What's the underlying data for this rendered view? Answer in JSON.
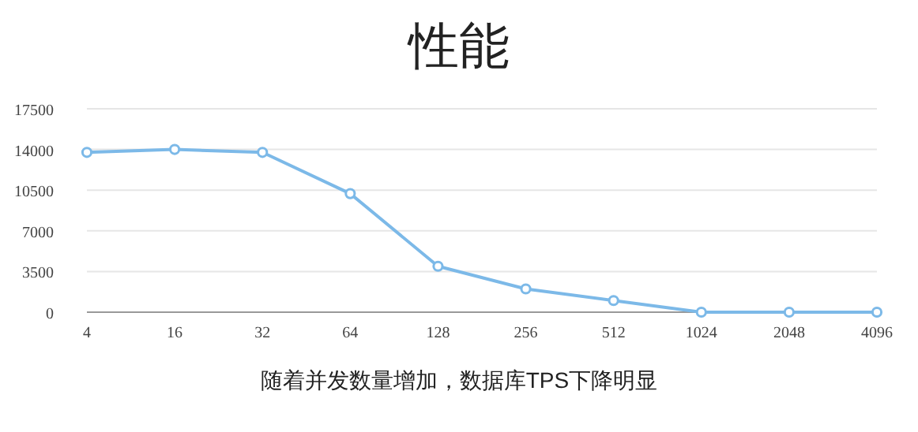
{
  "chart_data": {
    "type": "line",
    "title": "性能",
    "categories": [
      "4",
      "16",
      "32",
      "64",
      "128",
      "256",
      "512",
      "1024",
      "2048",
      "4096"
    ],
    "series": [
      {
        "color": "#7cb9e8",
        "values": [
          13750,
          14000,
          13750,
          10200,
          3950,
          2000,
          1000,
          0,
          0,
          0
        ]
      }
    ],
    "ylim": [
      0,
      17500
    ],
    "yticks": [
      0,
      3500,
      7000,
      10500,
      14000,
      17500
    ],
    "grid": "y",
    "marker": "circle",
    "line_style": "solid",
    "annotations": [
      "随着并发数量增加，数据库TPS下降明显"
    ]
  }
}
